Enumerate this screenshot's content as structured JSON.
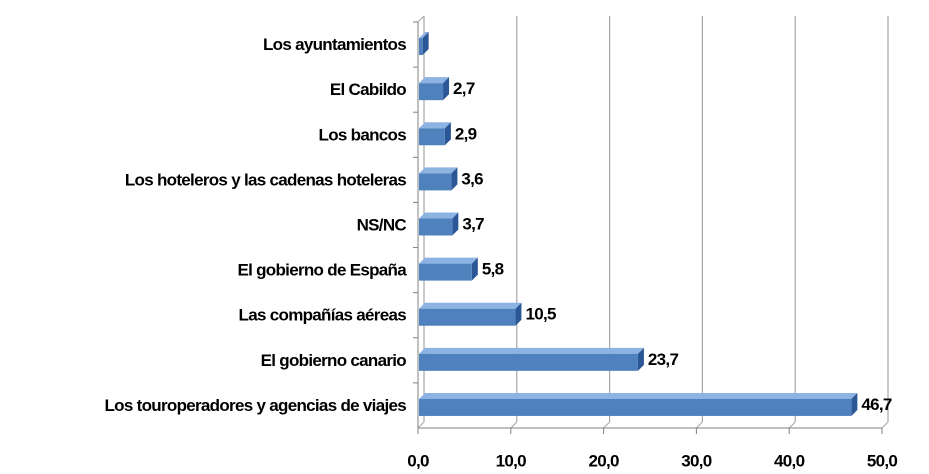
{
  "chart_data": {
    "type": "bar",
    "orientation": "horizontal",
    "categories": [
      "Los ayuntamientos",
      "El Cabildo",
      "Los bancos",
      "Los hoteleros y las cadenas hoteleras",
      "NS/NC",
      "El gobierno de España",
      "Las compañías aéreas",
      "El gobierno canario",
      "Los touroperadores y agencias de viajes"
    ],
    "values": [
      0.5,
      2.7,
      2.9,
      3.6,
      3.7,
      5.8,
      10.5,
      23.7,
      46.7
    ],
    "value_labels": [
      null,
      "2,7",
      "2,9",
      "3,6",
      "3,7",
      "5,8",
      "10,5",
      "23,7",
      "46,7"
    ],
    "color": "#4f81bd",
    "xlim": [
      0,
      50
    ],
    "xticks": [
      {
        "value": 0,
        "label": "0,0"
      },
      {
        "value": 10,
        "label": "10,0"
      },
      {
        "value": 20,
        "label": "20,0"
      },
      {
        "value": 30,
        "label": "30,0"
      },
      {
        "value": 40,
        "label": "40,0"
      },
      {
        "value": 50,
        "label": "50,0"
      }
    ],
    "grid": true
  }
}
